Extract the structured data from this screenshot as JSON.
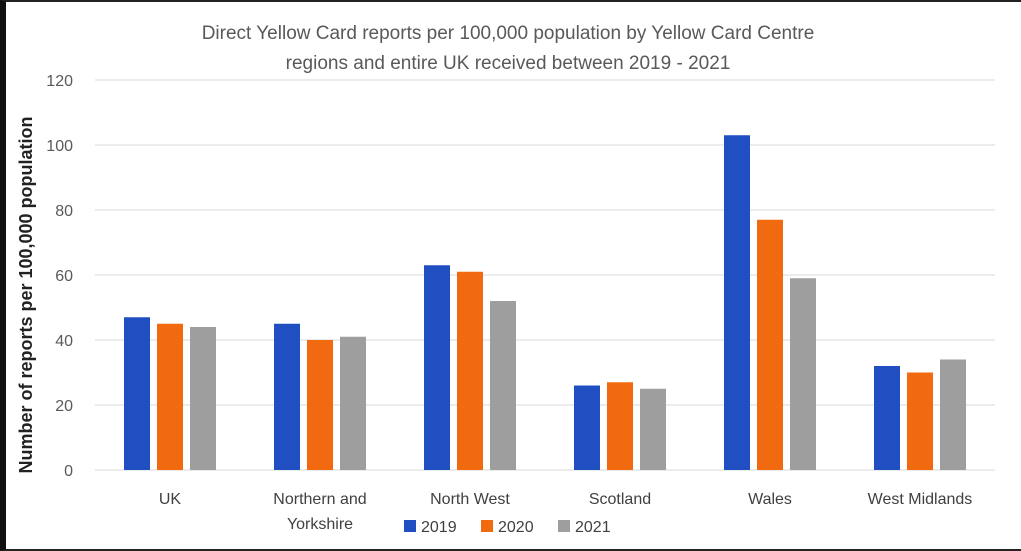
{
  "chart_data": {
    "type": "bar",
    "title_lines": [
      "Direct Yellow Card reports per 100,000 population by Yellow Card Centre",
      "regions and entire UK received between 2019 - 2021"
    ],
    "xlabel": "",
    "ylabel": "Number of reports per 100,000 population",
    "ylim": [
      0,
      120
    ],
    "yticks": [
      0,
      20,
      40,
      60,
      80,
      100,
      120
    ],
    "grid": true,
    "legend_position": "bottom",
    "categories": [
      [
        "UK"
      ],
      [
        "Northern and",
        "Yorkshire"
      ],
      [
        "North West"
      ],
      [
        "Scotland"
      ],
      [
        "Wales"
      ],
      [
        "West Midlands"
      ]
    ],
    "series": [
      {
        "name": "2019",
        "color": "#1f4fc1",
        "values": [
          47,
          45,
          63,
          26,
          103,
          32
        ]
      },
      {
        "name": "2020",
        "color": "#f26a0f",
        "values": [
          45,
          40,
          61,
          27,
          77,
          30
        ]
      },
      {
        "name": "2021",
        "color": "#9e9e9e",
        "values": [
          44,
          41,
          52,
          25,
          59,
          34
        ]
      }
    ]
  }
}
